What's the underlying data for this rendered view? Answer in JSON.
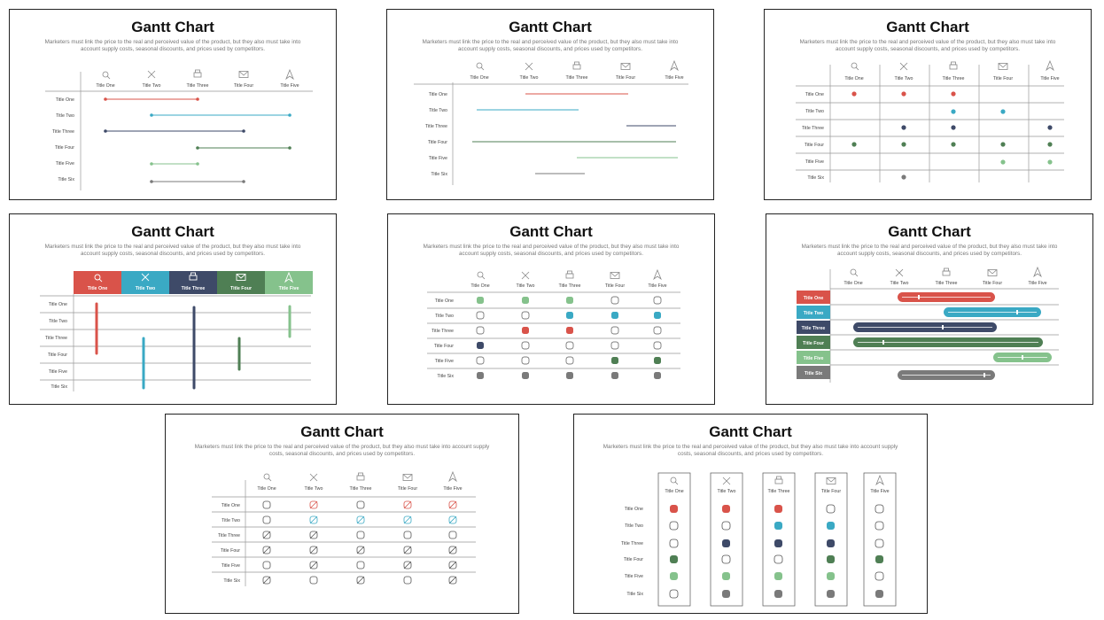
{
  "chart_title": "Gantt Chart",
  "description": "Marketers must link the price to the real and perceived value of the product, but they also must take into account supply costs, seasonal discounts, and prices used by competitors.",
  "columns": [
    {
      "label": "Title One",
      "icon": "search-icon"
    },
    {
      "label": "Title Two",
      "icon": "close-icon"
    },
    {
      "label": "Title Three",
      "icon": "printer-icon"
    },
    {
      "label": "Title Four",
      "icon": "mail-icon"
    },
    {
      "label": "Title Five",
      "icon": "navigation-icon"
    }
  ],
  "rows": [
    "Title One",
    "Title Two",
    "Title Three",
    "Title Four",
    "Title Five",
    "Title Six"
  ],
  "colors": {
    "red": "#d9534a",
    "teal": "#3aa9c4",
    "navy": "#3e4a68",
    "green": "#4f7f54",
    "light_green": "#85c28c",
    "gray": "#7a7a7a",
    "line": "#bdbdbd"
  }
}
